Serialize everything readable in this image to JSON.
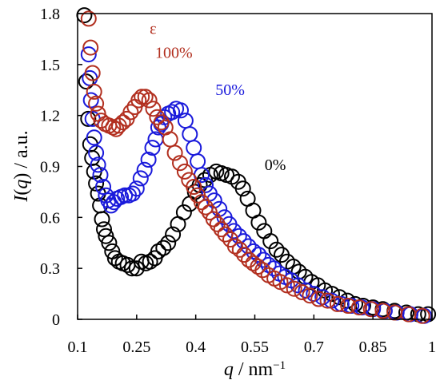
{
  "chart_data": {
    "type": "scatter",
    "xlabel": {
      "var": "q",
      "unit": " / nm",
      "sup": "−1"
    },
    "ylabel": {
      "var": "I",
      "arg": "q",
      "unit": " / a.u."
    },
    "xlim": [
      0.1,
      1.0
    ],
    "ylim": [
      0,
      1.8
    ],
    "xticks": [
      "0.1",
      "0.25",
      "0.4",
      "0.55",
      "0.7",
      "0.85",
      "1"
    ],
    "xtick_values": [
      0.1,
      0.25,
      0.4,
      0.55,
      0.7,
      0.85,
      1.0
    ],
    "yticks": [
      "0",
      "0.3",
      "0.6",
      "0.9",
      "1.2",
      "1.5",
      "1.8"
    ],
    "ytick_values": [
      0,
      0.3,
      0.6,
      0.9,
      1.2,
      1.5,
      1.8
    ],
    "grid": false,
    "legend_symbol": "ε",
    "series": [
      {
        "name": "0%",
        "color": "#000000",
        "points": [
          [
            0.117,
            1.79
          ],
          [
            0.122,
            1.4
          ],
          [
            0.127,
            1.18
          ],
          [
            0.132,
            1.03
          ],
          [
            0.137,
            0.95
          ],
          [
            0.142,
            0.87
          ],
          [
            0.147,
            0.8
          ],
          [
            0.152,
            0.74
          ],
          [
            0.157,
            0.67
          ],
          [
            0.162,
            0.59
          ],
          [
            0.167,
            0.53
          ],
          [
            0.172,
            0.49
          ],
          [
            0.18,
            0.45
          ],
          [
            0.188,
            0.4
          ],
          [
            0.195,
            0.36
          ],
          [
            0.205,
            0.34
          ],
          [
            0.215,
            0.33
          ],
          [
            0.227,
            0.32
          ],
          [
            0.238,
            0.3
          ],
          [
            0.25,
            0.3
          ],
          [
            0.262,
            0.34
          ],
          [
            0.273,
            0.33
          ],
          [
            0.284,
            0.34
          ],
          [
            0.296,
            0.36
          ],
          [
            0.305,
            0.4
          ],
          [
            0.318,
            0.42
          ],
          [
            0.33,
            0.45
          ],
          [
            0.342,
            0.5
          ],
          [
            0.355,
            0.56
          ],
          [
            0.37,
            0.63
          ],
          [
            0.385,
            0.68
          ],
          [
            0.398,
            0.75
          ],
          [
            0.41,
            0.79
          ],
          [
            0.423,
            0.82
          ],
          [
            0.437,
            0.85
          ],
          [
            0.452,
            0.87
          ],
          [
            0.465,
            0.86
          ],
          [
            0.478,
            0.85
          ],
          [
            0.492,
            0.84
          ],
          [
            0.508,
            0.81
          ],
          [
            0.52,
            0.77
          ],
          [
            0.532,
            0.71
          ],
          [
            0.546,
            0.64
          ],
          [
            0.56,
            0.57
          ],
          [
            0.574,
            0.52
          ],
          [
            0.59,
            0.46
          ],
          [
            0.605,
            0.41
          ],
          [
            0.618,
            0.38
          ],
          [
            0.632,
            0.34
          ],
          [
            0.648,
            0.31
          ],
          [
            0.662,
            0.28
          ],
          [
            0.678,
            0.25
          ],
          [
            0.694,
            0.22
          ],
          [
            0.71,
            0.2
          ],
          [
            0.728,
            0.17
          ],
          [
            0.746,
            0.15
          ],
          [
            0.765,
            0.13
          ],
          [
            0.785,
            0.11
          ],
          [
            0.805,
            0.09
          ],
          [
            0.825,
            0.08
          ],
          [
            0.85,
            0.07
          ],
          [
            0.875,
            0.06
          ],
          [
            0.905,
            0.05
          ],
          [
            0.935,
            0.04
          ],
          [
            0.965,
            0.03
          ],
          [
            0.99,
            0.03
          ]
        ]
      },
      {
        "name": "50%",
        "color": "#1a1adb",
        "points": [
          [
            0.128,
            1.56
          ],
          [
            0.131,
            1.42
          ],
          [
            0.134,
            1.29
          ],
          [
            0.138,
            1.18
          ],
          [
            0.142,
            1.07
          ],
          [
            0.147,
            0.98
          ],
          [
            0.152,
            0.91
          ],
          [
            0.158,
            0.85
          ],
          [
            0.165,
            0.78
          ],
          [
            0.172,
            0.73
          ],
          [
            0.178,
            0.7
          ],
          [
            0.185,
            0.67
          ],
          [
            0.192,
            0.69
          ],
          [
            0.2,
            0.71
          ],
          [
            0.21,
            0.72
          ],
          [
            0.22,
            0.73
          ],
          [
            0.23,
            0.73
          ],
          [
            0.24,
            0.74
          ],
          [
            0.25,
            0.77
          ],
          [
            0.26,
            0.83
          ],
          [
            0.27,
            0.88
          ],
          [
            0.28,
            0.94
          ],
          [
            0.29,
            1.01
          ],
          [
            0.298,
            1.06
          ],
          [
            0.305,
            1.13
          ],
          [
            0.312,
            1.15
          ],
          [
            0.32,
            1.19
          ],
          [
            0.33,
            1.21
          ],
          [
            0.34,
            1.22
          ],
          [
            0.35,
            1.24
          ],
          [
            0.362,
            1.23
          ],
          [
            0.374,
            1.17
          ],
          [
            0.385,
            1.09
          ],
          [
            0.395,
            1.01
          ],
          [
            0.405,
            0.93
          ],
          [
            0.415,
            0.85
          ],
          [
            0.425,
            0.79
          ],
          [
            0.435,
            0.74
          ],
          [
            0.447,
            0.7
          ],
          [
            0.46,
            0.65
          ],
          [
            0.473,
            0.6
          ],
          [
            0.485,
            0.56
          ],
          [
            0.497,
            0.52
          ],
          [
            0.51,
            0.49
          ],
          [
            0.522,
            0.46
          ],
          [
            0.534,
            0.43
          ],
          [
            0.547,
            0.4
          ],
          [
            0.56,
            0.38
          ],
          [
            0.572,
            0.35
          ],
          [
            0.585,
            0.32
          ],
          [
            0.598,
            0.3
          ],
          [
            0.612,
            0.27
          ],
          [
            0.627,
            0.25
          ],
          [
            0.642,
            0.23
          ],
          [
            0.66,
            0.2
          ],
          [
            0.68,
            0.17
          ],
          [
            0.7,
            0.15
          ],
          [
            0.722,
            0.13
          ],
          [
            0.745,
            0.11
          ],
          [
            0.77,
            0.09
          ],
          [
            0.795,
            0.08
          ],
          [
            0.822,
            0.07
          ],
          [
            0.85,
            0.06
          ],
          [
            0.88,
            0.05
          ],
          [
            0.91,
            0.04
          ],
          [
            0.945,
            0.03
          ],
          [
            0.98,
            0.02
          ]
        ]
      },
      {
        "name": "100%",
        "color": "#b22f1f",
        "points": [
          [
            0.128,
            1.77
          ],
          [
            0.133,
            1.6
          ],
          [
            0.138,
            1.45
          ],
          [
            0.142,
            1.34
          ],
          [
            0.147,
            1.27
          ],
          [
            0.152,
            1.21
          ],
          [
            0.16,
            1.17
          ],
          [
            0.17,
            1.15
          ],
          [
            0.18,
            1.14
          ],
          [
            0.19,
            1.13
          ],
          [
            0.198,
            1.12
          ],
          [
            0.205,
            1.14
          ],
          [
            0.215,
            1.16
          ],
          [
            0.225,
            1.18
          ],
          [
            0.235,
            1.22
          ],
          [
            0.245,
            1.25
          ],
          [
            0.255,
            1.29
          ],
          [
            0.263,
            1.31
          ],
          [
            0.272,
            1.31
          ],
          [
            0.282,
            1.29
          ],
          [
            0.292,
            1.24
          ],
          [
            0.302,
            1.19
          ],
          [
            0.313,
            1.16
          ],
          [
            0.323,
            1.13
          ],
          [
            0.335,
            1.06
          ],
          [
            0.347,
            0.98
          ],
          [
            0.36,
            0.92
          ],
          [
            0.372,
            0.87
          ],
          [
            0.383,
            0.82
          ],
          [
            0.395,
            0.78
          ],
          [
            0.405,
            0.73
          ],
          [
            0.415,
            0.69
          ],
          [
            0.425,
            0.66
          ],
          [
            0.435,
            0.63
          ],
          [
            0.445,
            0.59
          ],
          [
            0.455,
            0.56
          ],
          [
            0.465,
            0.53
          ],
          [
            0.475,
            0.5
          ],
          [
            0.488,
            0.47
          ],
          [
            0.5,
            0.43
          ],
          [
            0.512,
            0.41
          ],
          [
            0.523,
            0.38
          ],
          [
            0.535,
            0.35
          ],
          [
            0.546,
            0.33
          ],
          [
            0.558,
            0.31
          ],
          [
            0.57,
            0.29
          ],
          [
            0.585,
            0.26
          ],
          [
            0.6,
            0.24
          ],
          [
            0.615,
            0.22
          ],
          [
            0.632,
            0.2
          ],
          [
            0.65,
            0.18
          ],
          [
            0.67,
            0.16
          ],
          [
            0.69,
            0.14
          ],
          [
            0.712,
            0.12
          ],
          [
            0.735,
            0.11
          ],
          [
            0.76,
            0.09
          ],
          [
            0.787,
            0.08
          ],
          [
            0.815,
            0.07
          ],
          [
            0.845,
            0.06
          ],
          [
            0.875,
            0.05
          ],
          [
            0.905,
            0.04
          ],
          [
            0.94,
            0.03
          ],
          [
            0.975,
            0.02
          ]
        ]
      }
    ],
    "annotations": [
      {
        "text": "ε",
        "color": "#b22f1f",
        "x": 0.283,
        "y": 1.68
      },
      {
        "text": "100%",
        "color": "#b22f1f",
        "x": 0.297,
        "y": 1.54
      },
      {
        "text": "50%",
        "color": "#1a1adb",
        "x": 0.45,
        "y": 1.32
      },
      {
        "text": "0%",
        "color": "#000000",
        "x": 0.575,
        "y": 0.88
      }
    ]
  }
}
